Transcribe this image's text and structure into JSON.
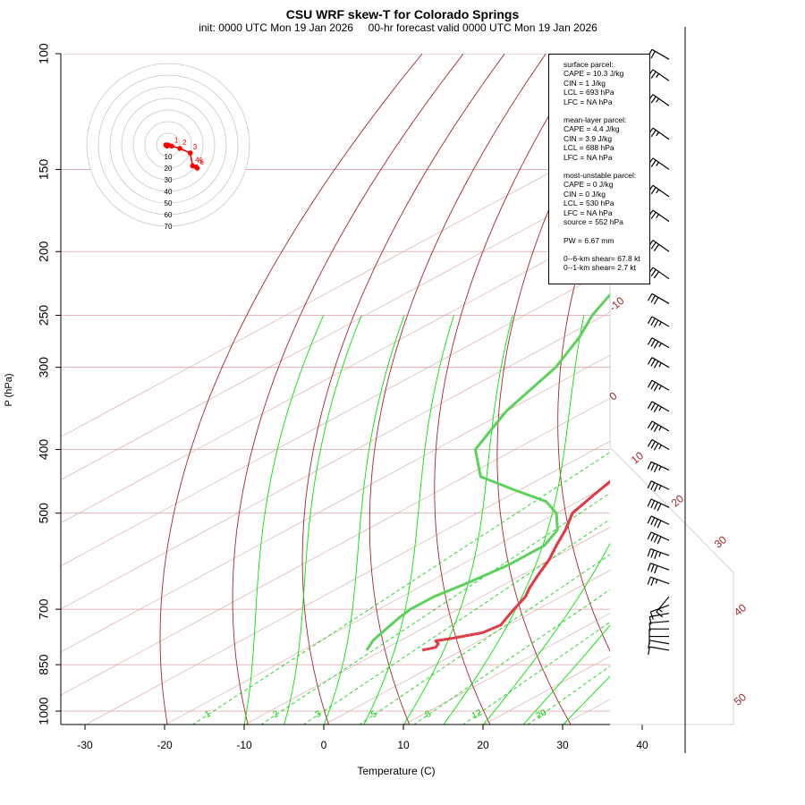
{
  "header": {
    "title": "CSU WRF skew-T for Colorado Springs",
    "subtitle": "init: 0000 UTC Mon 19 Jan 2026     00-hr forecast valid 0000 UTC Mon 19 Jan 2026"
  },
  "indices": {
    "surface": {
      "heading": "surface parcel:",
      "cape": "CAPE = 10.3 J/kg",
      "cin": "CIN = 1 J/kg",
      "lcl": "LCL = 693 hPa",
      "lfc": "LFC = NA hPa"
    },
    "mean_layer": {
      "heading": "mean-layer parcel:",
      "cape": "CAPE = 4.4 J/kg",
      "cin": "CIN = 3.9 J/kg",
      "lcl": "LCL = 688 hPa",
      "lfc": "LFC = NA hPa"
    },
    "most_unstable": {
      "heading": "most-unstable parcel:",
      "cape": "CAPE = 0 J/kg",
      "cin": "CIN = 0 J/kg",
      "lcl": "LCL = 530 hPa",
      "lfc": "LFC = NA hPa",
      "source": "source = 552 hPa"
    },
    "pw": "PW =  6.67 mm",
    "shear_06": "0--6-km shear= 67.8 kt",
    "shear_01": "0--1-km shear= 2.7 kt"
  },
  "chart_data": {
    "type": "line",
    "title": "CSU WRF skew-T for Colorado Springs",
    "subtitle": "init: 0000 UTC Mon 19 Jan 2026     00-hr forecast valid 0000 UTC Mon 19 Jan 2026",
    "xlabel": "Temperature (C)",
    "ylabel": "P (hPa)",
    "xlim": [
      -33,
      45
    ],
    "ylim": [
      1050,
      100
    ],
    "y_scale": "log",
    "x_ticks": [
      -30,
      -20,
      -10,
      0,
      10,
      20,
      30,
      40
    ],
    "y_ticks": [
      100,
      150,
      200,
      250,
      300,
      400,
      500,
      700,
      850,
      1000
    ],
    "isotherms_deg_c": [
      -100,
      -90,
      -80,
      -70,
      -60,
      -50,
      -40,
      -30,
      -20,
      -10,
      0,
      10,
      20,
      30,
      40,
      50
    ],
    "isotherm_labels": [
      -10,
      0,
      10,
      20,
      30,
      40,
      50
    ],
    "mixing_ratio_lines_g_kg": [
      1,
      2,
      3,
      5,
      8,
      12,
      20
    ],
    "dry_adiabats_theta_k": [
      250,
      260,
      270,
      280,
      290,
      300,
      310,
      320,
      330,
      340,
      350,
      360,
      370,
      380,
      390,
      400,
      410,
      420,
      430,
      440,
      450,
      460,
      480
    ],
    "moist_adiabats_deg_c": [
      -10,
      -5,
      0,
      5,
      10,
      15,
      20,
      25,
      30
    ],
    "series": [
      {
        "name": "Temperature",
        "color": "#e03846",
        "points": [
          [
            808,
            -5
          ],
          [
            800,
            -4
          ],
          [
            790,
            -4.5
          ],
          [
            782,
            -5.5
          ],
          [
            775,
            -4
          ],
          [
            760,
            -1.5
          ],
          [
            740,
            -1
          ],
          [
            720,
            -2
          ],
          [
            700,
            -3
          ],
          [
            670,
            -4.5
          ],
          [
            650,
            -6
          ],
          [
            620,
            -8
          ],
          [
            590,
            -10
          ],
          [
            560,
            -12.5
          ],
          [
            530,
            -15
          ],
          [
            500,
            -18
          ],
          [
            470,
            -19.5
          ],
          [
            440,
            -21
          ],
          [
            400,
            -25
          ],
          [
            350,
            -31.5
          ],
          [
            300,
            -38.5
          ],
          [
            270,
            -44
          ],
          [
            250,
            -48.5
          ],
          [
            220,
            -55
          ],
          [
            200,
            -58
          ],
          [
            180,
            -59
          ],
          [
            160,
            -60
          ],
          [
            140,
            -61
          ],
          [
            120,
            -61
          ],
          [
            107,
            -62.5
          ]
        ]
      },
      {
        "name": "Dewpoint",
        "color": "#5cd15c",
        "points": [
          [
            808,
            -12
          ],
          [
            780,
            -13.5
          ],
          [
            750,
            -14.5
          ],
          [
            720,
            -15.5
          ],
          [
            700,
            -16
          ],
          [
            670,
            -16
          ],
          [
            640,
            -15
          ],
          [
            600,
            -14
          ],
          [
            560,
            -14
          ],
          [
            530,
            -16
          ],
          [
            500,
            -20
          ],
          [
            480,
            -24
          ],
          [
            460,
            -31
          ],
          [
            440,
            -38
          ],
          [
            400,
            -45
          ],
          [
            350,
            -50
          ],
          [
            300,
            -54
          ],
          [
            270,
            -58
          ],
          [
            250,
            -61.5
          ],
          [
            220,
            -66
          ],
          [
            200,
            -71
          ],
          [
            190,
            -73
          ]
        ]
      }
    ],
    "hodograph": {
      "rings_kt": [
        10,
        20,
        30,
        40,
        50,
        60,
        70
      ],
      "ring_labels": [
        "10",
        "20",
        "30",
        "40",
        "50",
        "60",
        "70"
      ],
      "height_labels": [
        "1",
        "2",
        "3",
        "4",
        "5",
        "6"
      ],
      "points_kt": [
        [
          -2,
          0
        ],
        [
          0,
          0
        ],
        [
          -1,
          -1
        ],
        [
          3,
          -1
        ],
        [
          10,
          -3
        ],
        [
          19,
          -7
        ],
        [
          21,
          -18
        ],
        [
          24,
          -19
        ],
        [
          25,
          -20
        ]
      ],
      "color": "#ff0000"
    },
    "wind_barbs": [
      {
        "p": 808,
        "dir": 280,
        "kt": 10
      },
      {
        "p": 790,
        "dir": 280,
        "kt": 10
      },
      {
        "p": 770,
        "dir": 270,
        "kt": 10
      },
      {
        "p": 750,
        "dir": 270,
        "kt": 10
      },
      {
        "p": 730,
        "dir": 265,
        "kt": 10
      },
      {
        "p": 710,
        "dir": 260,
        "kt": 10
      },
      {
        "p": 690,
        "dir": 250,
        "kt": 10
      },
      {
        "p": 670,
        "dir": 220,
        "kt": 15
      },
      {
        "p": 640,
        "dir": 290,
        "kt": 25
      },
      {
        "p": 610,
        "dir": 290,
        "kt": 30
      },
      {
        "p": 580,
        "dir": 290,
        "kt": 35
      },
      {
        "p": 550,
        "dir": 295,
        "kt": 40
      },
      {
        "p": 520,
        "dir": 295,
        "kt": 40
      },
      {
        "p": 490,
        "dir": 295,
        "kt": 40
      },
      {
        "p": 460,
        "dir": 295,
        "kt": 35
      },
      {
        "p": 430,
        "dir": 295,
        "kt": 35
      },
      {
        "p": 400,
        "dir": 300,
        "kt": 35
      },
      {
        "p": 375,
        "dir": 300,
        "kt": 35
      },
      {
        "p": 350,
        "dir": 300,
        "kt": 35
      },
      {
        "p": 325,
        "dir": 300,
        "kt": 35
      },
      {
        "p": 300,
        "dir": 300,
        "kt": 35
      },
      {
        "p": 280,
        "dir": 300,
        "kt": 35
      },
      {
        "p": 260,
        "dir": 300,
        "kt": 35
      },
      {
        "p": 240,
        "dir": 300,
        "kt": 30
      },
      {
        "p": 220,
        "dir": 305,
        "kt": 30
      },
      {
        "p": 200,
        "dir": 305,
        "kt": 30
      },
      {
        "p": 180,
        "dir": 305,
        "kt": 25
      },
      {
        "p": 165,
        "dir": 305,
        "kt": 25
      },
      {
        "p": 150,
        "dir": 305,
        "kt": 25
      },
      {
        "p": 135,
        "dir": 305,
        "kt": 25
      },
      {
        "p": 120,
        "dir": 305,
        "kt": 25
      },
      {
        "p": 110,
        "dir": 305,
        "kt": 25
      },
      {
        "p": 102,
        "dir": 300,
        "kt": 20
      }
    ],
    "colors": {
      "isotherm": "#a0282d",
      "isobar": "#d8a0a0",
      "dry_adiabat": "#a0282d",
      "moist_adiabat": "#00e600",
      "mixing_ratio": "#00cc00",
      "temperature": "#e03846",
      "dewpoint": "#5cd15c",
      "parcel": "#d9534f"
    }
  }
}
